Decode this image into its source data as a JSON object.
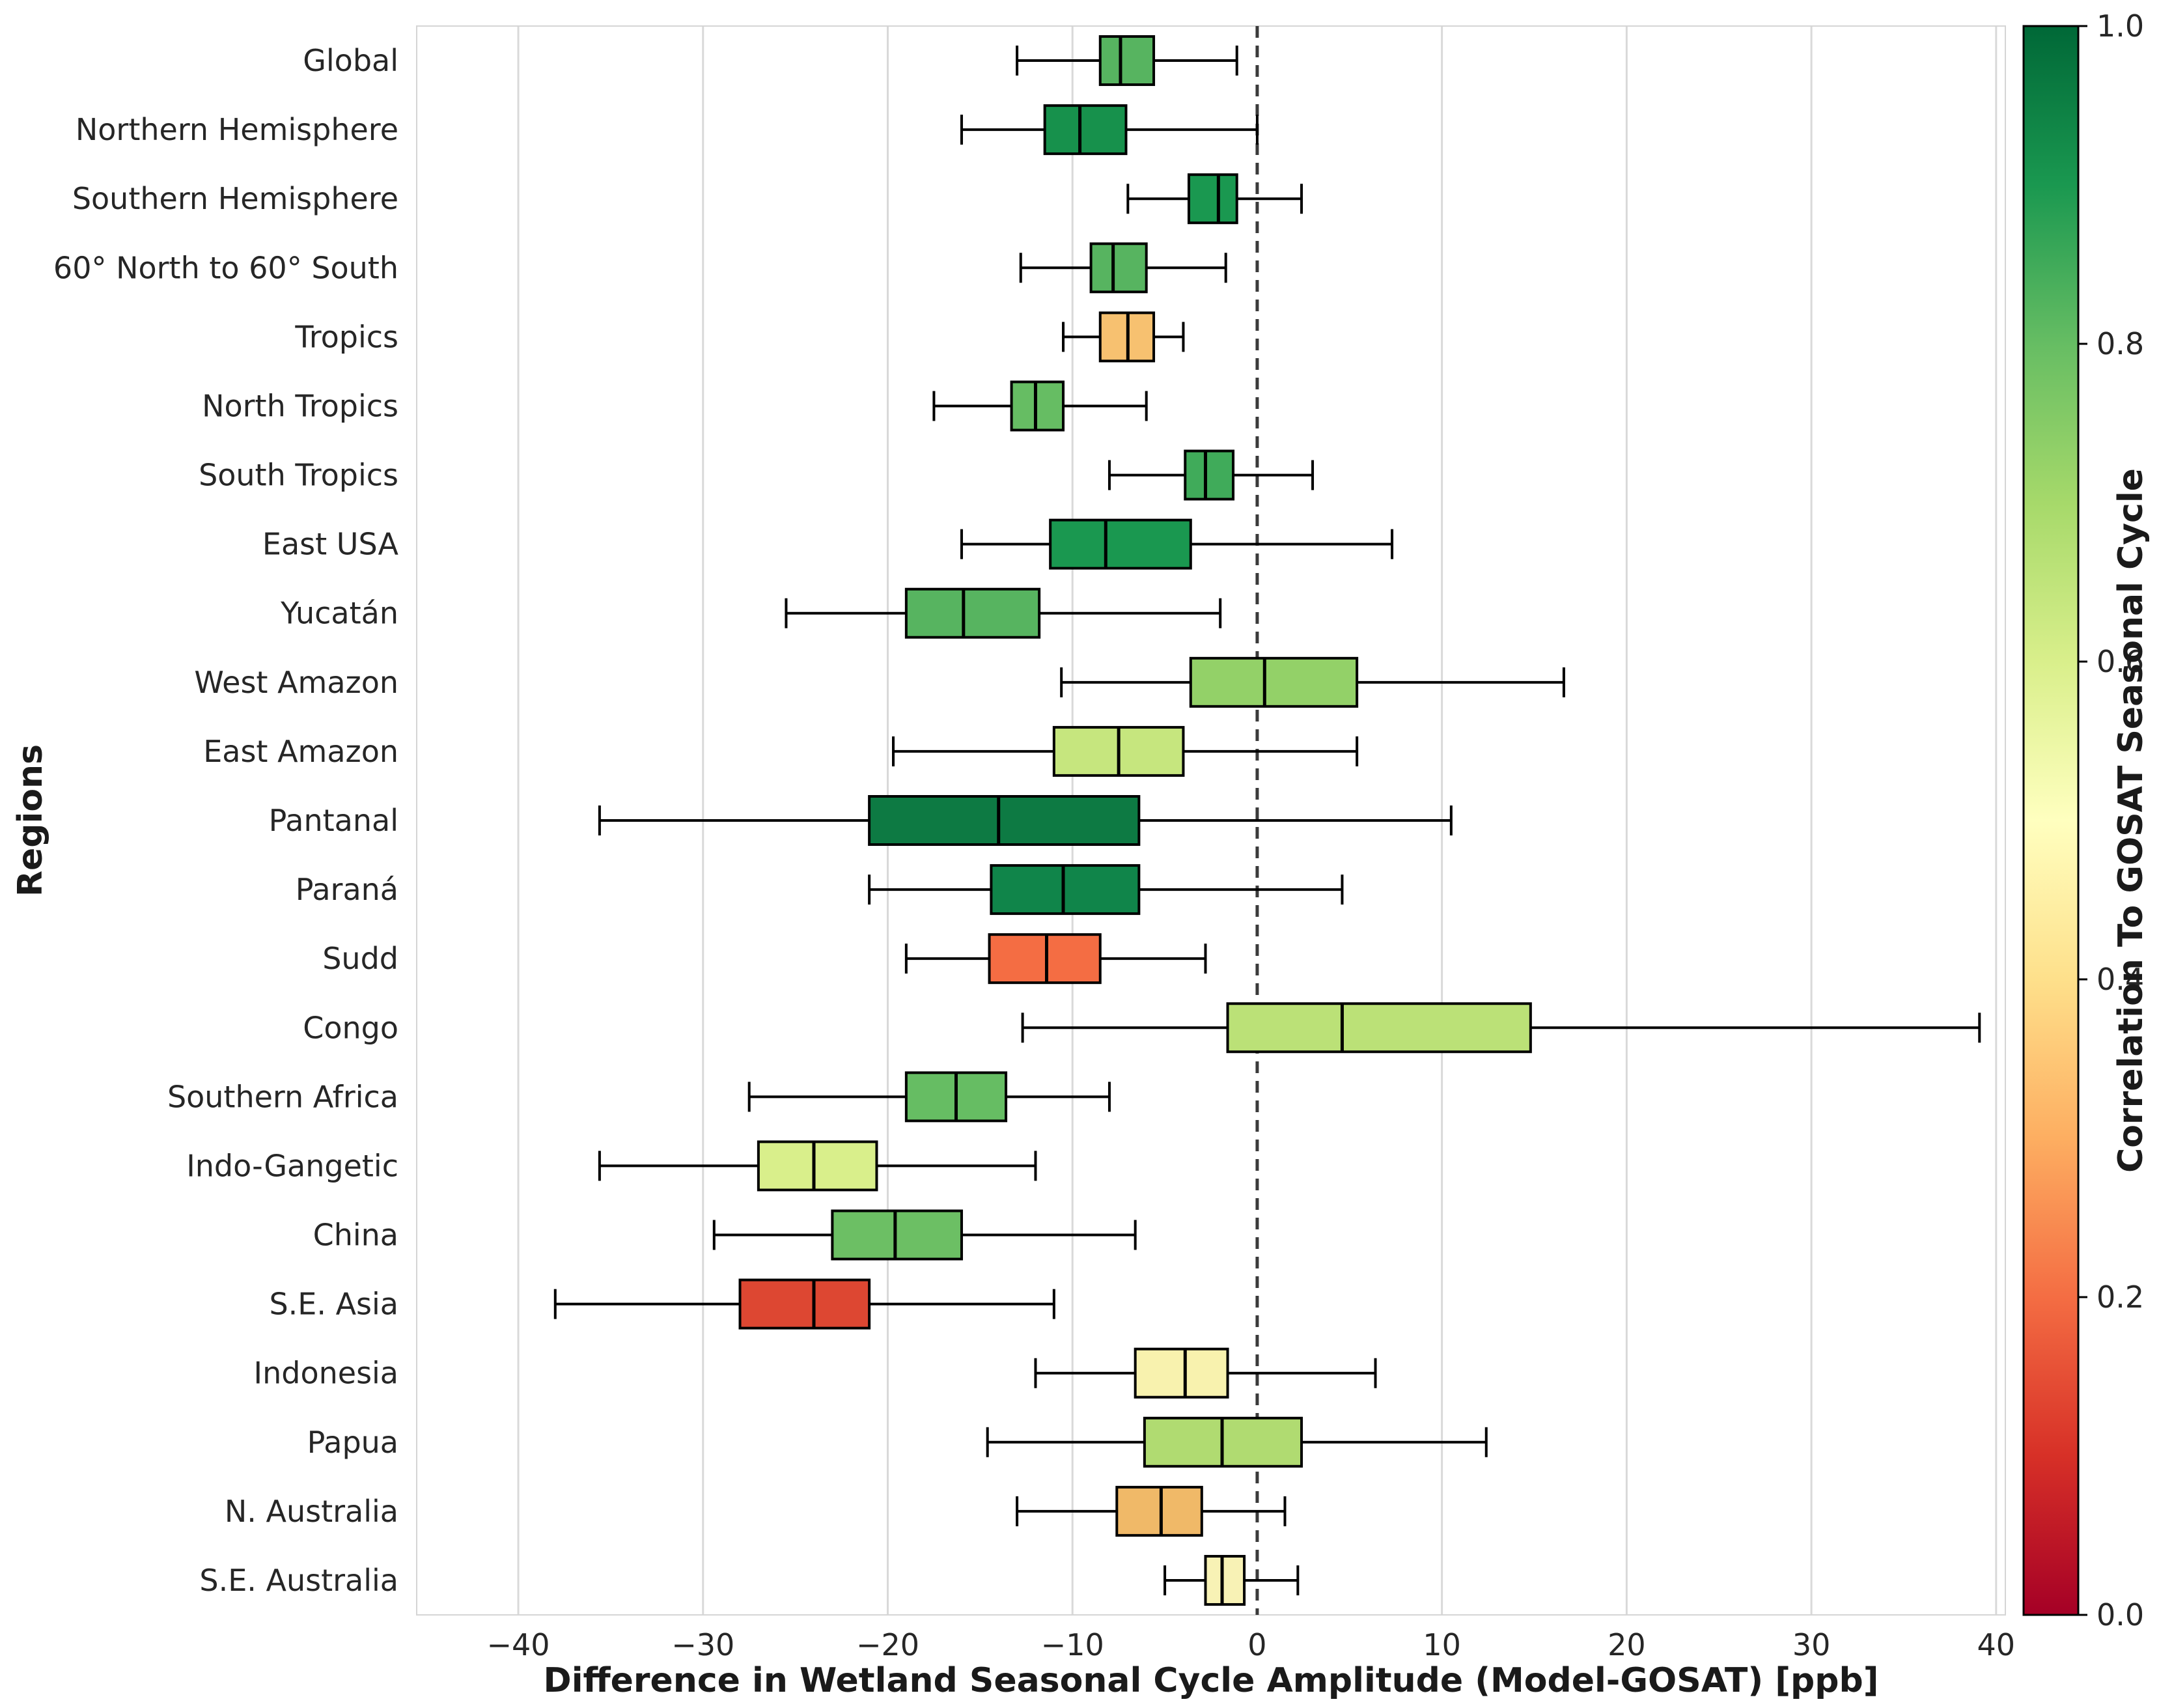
{
  "chart_data": {
    "type": "boxplot",
    "orientation": "horizontal",
    "title": "",
    "xlabel": "Difference in Wetland Seasonal Cycle Amplitude (Model-GOSAT) [ppb]",
    "ylabel": "Regions",
    "xlim": [
      -45.5,
      40.5
    ],
    "x_ticks": [
      -40,
      -30,
      -20,
      -10,
      0,
      10,
      20,
      30,
      40
    ],
    "x_tick_labels": [
      "−40",
      "−30",
      "−20",
      "−10",
      "0",
      "10",
      "20",
      "30",
      "40"
    ],
    "zero_line": 0,
    "grid": "vertical-light-gray",
    "colorbar": {
      "label": "Correlation To GOSAT Seasonal Cycle",
      "min": 0.0,
      "max": 1.0,
      "ticks": [
        0.0,
        0.2,
        0.4,
        0.6,
        0.8,
        1.0
      ],
      "tick_labels": [
        "0.0",
        "0.2",
        "0.4",
        "0.6",
        "0.8",
        "1.0"
      ],
      "colormap": "RdYlGn",
      "gradient_stops": [
        {
          "offset": 0.0,
          "color": "#a50026"
        },
        {
          "offset": 0.1,
          "color": "#d73027"
        },
        {
          "offset": 0.2,
          "color": "#f46d43"
        },
        {
          "offset": 0.3,
          "color": "#fdae61"
        },
        {
          "offset": 0.4,
          "color": "#fee08b"
        },
        {
          "offset": 0.5,
          "color": "#ffffbf"
        },
        {
          "offset": 0.6,
          "color": "#d9ef8b"
        },
        {
          "offset": 0.7,
          "color": "#a6d96a"
        },
        {
          "offset": 0.8,
          "color": "#66bd63"
        },
        {
          "offset": 0.9,
          "color": "#1a9850"
        },
        {
          "offset": 1.0,
          "color": "#006837"
        }
      ]
    },
    "regions": [
      {
        "name": "Global",
        "whisker_low": -13.0,
        "q1": -8.5,
        "median": -7.4,
        "q3": -5.6,
        "whisker_high": -1.1,
        "correlation": 0.82,
        "color": "#57b460"
      },
      {
        "name": "Northern Hemisphere",
        "whisker_low": -16.0,
        "q1": -11.5,
        "median": -9.6,
        "q3": -7.1,
        "whisker_high": 0.0,
        "correlation": 0.92,
        "color": "#17914c"
      },
      {
        "name": "Southern Hemisphere",
        "whisker_low": -7.0,
        "q1": -3.7,
        "median": -2.1,
        "q3": -1.1,
        "whisker_high": 2.4,
        "correlation": 0.9,
        "color": "#1a9850"
      },
      {
        "name": "60° North to 60° South",
        "whisker_low": -12.8,
        "q1": -9.0,
        "median": -7.8,
        "q3": -6.0,
        "whisker_high": -1.7,
        "correlation": 0.82,
        "color": "#57b460"
      },
      {
        "name": "Tropics",
        "whisker_low": -10.5,
        "q1": -8.5,
        "median": -7.0,
        "q3": -5.6,
        "whisker_high": -4.0,
        "correlation": 0.36,
        "color": "#f7c170"
      },
      {
        "name": "North Tropics",
        "whisker_low": -17.5,
        "q1": -13.3,
        "median": -12.0,
        "q3": -10.5,
        "whisker_high": -6.0,
        "correlation": 0.8,
        "color": "#66bd63"
      },
      {
        "name": "South Tropics",
        "whisker_low": -8.0,
        "q1": -3.9,
        "median": -2.8,
        "q3": -1.3,
        "whisker_high": 3.0,
        "correlation": 0.85,
        "color": "#40ab5a"
      },
      {
        "name": "East USA",
        "whisker_low": -16.0,
        "q1": -11.2,
        "median": -8.2,
        "q3": -3.6,
        "whisker_high": 7.3,
        "correlation": 0.9,
        "color": "#1a9850"
      },
      {
        "name": "Yucatán",
        "whisker_low": -25.5,
        "q1": -19.0,
        "median": -15.9,
        "q3": -11.8,
        "whisker_high": -2.0,
        "correlation": 0.82,
        "color": "#57b460"
      },
      {
        "name": "West Amazon",
        "whisker_low": -10.6,
        "q1": -3.6,
        "median": 0.4,
        "q3": 5.4,
        "whisker_high": 16.6,
        "correlation": 0.73,
        "color": "#93d168"
      },
      {
        "name": "East Amazon",
        "whisker_low": -19.7,
        "q1": -11.0,
        "median": -7.5,
        "q3": -4.0,
        "whisker_high": 5.4,
        "correlation": 0.64,
        "color": "#c6e67e"
      },
      {
        "name": "Pantanal",
        "whisker_low": -35.6,
        "q1": -21.0,
        "median": -14.0,
        "q3": -6.4,
        "whisker_high": 10.5,
        "correlation": 0.97,
        "color": "#0d7a43"
      },
      {
        "name": "Paraná",
        "whisker_low": -21.0,
        "q1": -14.4,
        "median": -10.5,
        "q3": -6.4,
        "whisker_high": 4.6,
        "correlation": 0.94,
        "color": "#10854a"
      },
      {
        "name": "Sudd",
        "whisker_low": -19.0,
        "q1": -14.5,
        "median": -11.4,
        "q3": -8.5,
        "whisker_high": -2.8,
        "correlation": 0.2,
        "color": "#f46d43"
      },
      {
        "name": "Congo",
        "whisker_low": -12.7,
        "q1": -1.6,
        "median": 4.6,
        "q3": 14.8,
        "whisker_high": 39.1,
        "correlation": 0.66,
        "color": "#bbe177"
      },
      {
        "name": "Southern Africa",
        "whisker_low": -27.5,
        "q1": -19.0,
        "median": -16.3,
        "q3": -13.6,
        "whisker_high": -8.0,
        "correlation": 0.8,
        "color": "#66bd63"
      },
      {
        "name": "Indo-Gangetic",
        "whisker_low": -35.6,
        "q1": -27.0,
        "median": -24.0,
        "q3": -20.6,
        "whisker_high": -12.0,
        "correlation": 0.6,
        "color": "#d9ef8b"
      },
      {
        "name": "China",
        "whisker_low": -29.4,
        "q1": -23.0,
        "median": -19.6,
        "q3": -16.0,
        "whisker_high": -6.6,
        "correlation": 0.79,
        "color": "#6cbf64"
      },
      {
        "name": "S.E. Asia",
        "whisker_low": -38.0,
        "q1": -28.0,
        "median": -24.0,
        "q3": -21.0,
        "whisker_high": -11.0,
        "correlation": 0.14,
        "color": "#dd4732"
      },
      {
        "name": "Indonesia",
        "whisker_low": -12.0,
        "q1": -6.6,
        "median": -3.9,
        "q3": -1.6,
        "whisker_high": 6.4,
        "correlation": 0.5,
        "color": "#f8f2ae"
      },
      {
        "name": "Papua",
        "whisker_low": -14.6,
        "q1": -6.1,
        "median": -1.9,
        "q3": 2.4,
        "whisker_high": 12.4,
        "correlation": 0.68,
        "color": "#b0db71"
      },
      {
        "name": "N. Australia",
        "whisker_low": -13.0,
        "q1": -7.6,
        "median": -5.2,
        "q3": -3.0,
        "whisker_high": 1.5,
        "correlation": 0.35,
        "color": "#f0b968"
      },
      {
        "name": "S.E. Australia",
        "whisker_low": -5.0,
        "q1": -2.8,
        "median": -1.9,
        "q3": -0.7,
        "whisker_high": 2.2,
        "correlation": 0.5,
        "color": "#f8f2b5"
      }
    ]
  }
}
